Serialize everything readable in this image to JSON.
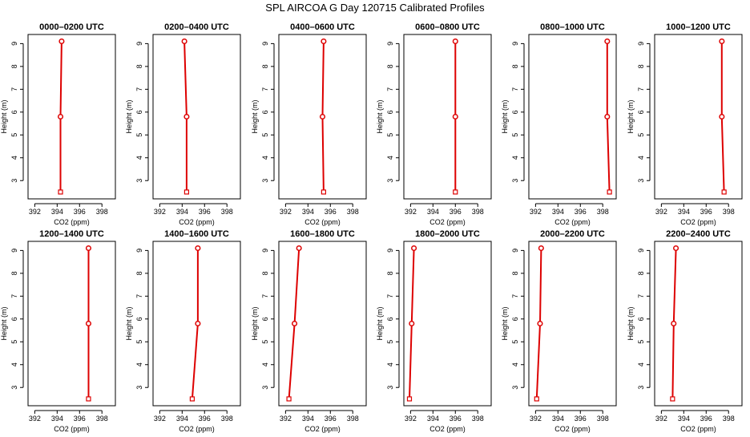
{
  "figure": {
    "title": "SPL AIRCOA G  Day 120715  Calibrated Profiles"
  },
  "chart_data": [
    {
      "type": "line",
      "title": "0000–0200 UTC",
      "xlabel": "CO2 (ppm)",
      "ylabel": "Height (m)",
      "xlim": [
        391.4,
        399.2
      ],
      "ylim": [
        2.2,
        9.4
      ],
      "xticks": [
        "392",
        "394",
        "396",
        "398"
      ],
      "yticks": [
        "3",
        "4",
        "5",
        "6",
        "7",
        "8",
        "9"
      ],
      "series": [
        {
          "x": [
            394.3,
            394.3,
            394.4
          ],
          "y": [
            2.5,
            5.8,
            9.1
          ]
        }
      ]
    },
    {
      "type": "line",
      "title": "0200–0400 UTC",
      "xlabel": "CO2 (ppm)",
      "ylabel": "Height (m)",
      "xlim": [
        391.4,
        399.2
      ],
      "ylim": [
        2.2,
        9.4
      ],
      "xticks": [
        "392",
        "394",
        "396",
        "398"
      ],
      "yticks": [
        "3",
        "4",
        "5",
        "6",
        "7",
        "8",
        "9"
      ],
      "series": [
        {
          "x": [
            394.4,
            394.4,
            394.2
          ],
          "y": [
            2.5,
            5.8,
            9.1
          ]
        }
      ]
    },
    {
      "type": "line",
      "title": "0400–0600 UTC",
      "xlabel": "CO2 (ppm)",
      "ylabel": "Height (m)",
      "xlim": [
        391.4,
        399.2
      ],
      "ylim": [
        2.2,
        9.4
      ],
      "xticks": [
        "392",
        "394",
        "396",
        "398"
      ],
      "yticks": [
        "3",
        "4",
        "5",
        "6",
        "7",
        "8",
        "9"
      ],
      "series": [
        {
          "x": [
            395.4,
            395.3,
            395.4
          ],
          "y": [
            2.5,
            5.8,
            9.1
          ]
        }
      ]
    },
    {
      "type": "line",
      "title": "0600–0800 UTC",
      "xlabel": "CO2 (ppm)",
      "ylabel": "Height (m)",
      "xlim": [
        391.4,
        399.2
      ],
      "ylim": [
        2.2,
        9.4
      ],
      "xticks": [
        "392",
        "394",
        "396",
        "398"
      ],
      "yticks": [
        "3",
        "4",
        "5",
        "6",
        "7",
        "8",
        "9"
      ],
      "series": [
        {
          "x": [
            396.0,
            396.0,
            396.0
          ],
          "y": [
            2.5,
            5.8,
            9.1
          ]
        }
      ]
    },
    {
      "type": "line",
      "title": "0800–1000 UTC",
      "xlabel": "CO2 (ppm)",
      "ylabel": "Height (m)",
      "xlim": [
        391.4,
        399.2
      ],
      "ylim": [
        2.2,
        9.4
      ],
      "xticks": [
        "392",
        "394",
        "396",
        "398"
      ],
      "yticks": [
        "3",
        "4",
        "5",
        "6",
        "7",
        "8",
        "9"
      ],
      "series": [
        {
          "x": [
            398.6,
            398.4,
            398.4
          ],
          "y": [
            2.5,
            5.8,
            9.1
          ]
        }
      ]
    },
    {
      "type": "line",
      "title": "1000–1200 UTC",
      "xlabel": "CO2 (ppm)",
      "ylabel": "Height (m)",
      "xlim": [
        391.4,
        399.2
      ],
      "ylim": [
        2.2,
        9.4
      ],
      "xticks": [
        "392",
        "394",
        "396",
        "398"
      ],
      "yticks": [
        "3",
        "4",
        "5",
        "6",
        "7",
        "8",
        "9"
      ],
      "series": [
        {
          "x": [
            397.6,
            397.4,
            397.4
          ],
          "y": [
            2.5,
            5.8,
            9.1
          ]
        }
      ]
    },
    {
      "type": "line",
      "title": "1200–1400 UTC",
      "xlabel": "CO2 (ppm)",
      "ylabel": "Height (m)",
      "xlim": [
        391.4,
        399.2
      ],
      "ylim": [
        2.2,
        9.4
      ],
      "xticks": [
        "392",
        "394",
        "396",
        "398"
      ],
      "yticks": [
        "3",
        "4",
        "5",
        "6",
        "7",
        "8",
        "9"
      ],
      "series": [
        {
          "x": [
            396.8,
            396.8,
            396.8
          ],
          "y": [
            2.5,
            5.8,
            9.1
          ]
        }
      ]
    },
    {
      "type": "line",
      "title": "1400–1600 UTC",
      "xlabel": "CO2 (ppm)",
      "ylabel": "Height (m)",
      "xlim": [
        391.4,
        399.2
      ],
      "ylim": [
        2.2,
        9.4
      ],
      "xticks": [
        "392",
        "394",
        "396",
        "398"
      ],
      "yticks": [
        "3",
        "4",
        "5",
        "6",
        "7",
        "8",
        "9"
      ],
      "series": [
        {
          "x": [
            394.9,
            395.4,
            395.4
          ],
          "y": [
            2.5,
            5.8,
            9.1
          ]
        }
      ]
    },
    {
      "type": "line",
      "title": "1600–1800 UTC",
      "xlabel": "CO2 (ppm)",
      "ylabel": "Height (m)",
      "xlim": [
        391.4,
        399.2
      ],
      "ylim": [
        2.2,
        9.4
      ],
      "xticks": [
        "392",
        "394",
        "396",
        "398"
      ],
      "yticks": [
        "3",
        "4",
        "5",
        "6",
        "7",
        "8",
        "9"
      ],
      "series": [
        {
          "x": [
            392.3,
            392.8,
            393.2
          ],
          "y": [
            2.5,
            5.8,
            9.1
          ]
        }
      ]
    },
    {
      "type": "line",
      "title": "1800–2000 UTC",
      "xlabel": "CO2 (ppm)",
      "ylabel": "Height (m)",
      "xlim": [
        391.4,
        399.2
      ],
      "ylim": [
        2.2,
        9.4
      ],
      "xticks": [
        "392",
        "394",
        "396",
        "398"
      ],
      "yticks": [
        "3",
        "4",
        "5",
        "6",
        "7",
        "8",
        "9"
      ],
      "series": [
        {
          "x": [
            391.9,
            392.1,
            392.3
          ],
          "y": [
            2.5,
            5.8,
            9.1
          ]
        }
      ]
    },
    {
      "type": "line",
      "title": "2000–2200 UTC",
      "xlabel": "CO2 (ppm)",
      "ylabel": "Height (m)",
      "xlim": [
        391.4,
        399.2
      ],
      "ylim": [
        2.2,
        9.4
      ],
      "xticks": [
        "392",
        "394",
        "396",
        "398"
      ],
      "yticks": [
        "3",
        "4",
        "5",
        "6",
        "7",
        "8",
        "9"
      ],
      "series": [
        {
          "x": [
            392.1,
            392.4,
            392.5
          ],
          "y": [
            2.5,
            5.8,
            9.1
          ]
        }
      ]
    },
    {
      "type": "line",
      "title": "2200–2400 UTC",
      "xlabel": "CO2 (ppm)",
      "ylabel": "Height (m)",
      "xlim": [
        391.4,
        399.2
      ],
      "ylim": [
        2.2,
        9.4
      ],
      "xticks": [
        "392",
        "394",
        "396",
        "398"
      ],
      "yticks": [
        "3",
        "4",
        "5",
        "6",
        "7",
        "8",
        "9"
      ],
      "series": [
        {
          "x": [
            393.0,
            393.1,
            393.3
          ],
          "y": [
            2.5,
            5.8,
            9.1
          ]
        }
      ]
    }
  ],
  "colors": {
    "series_line": "#dd0000",
    "marker": "#dd0000",
    "axis": "#000000"
  }
}
